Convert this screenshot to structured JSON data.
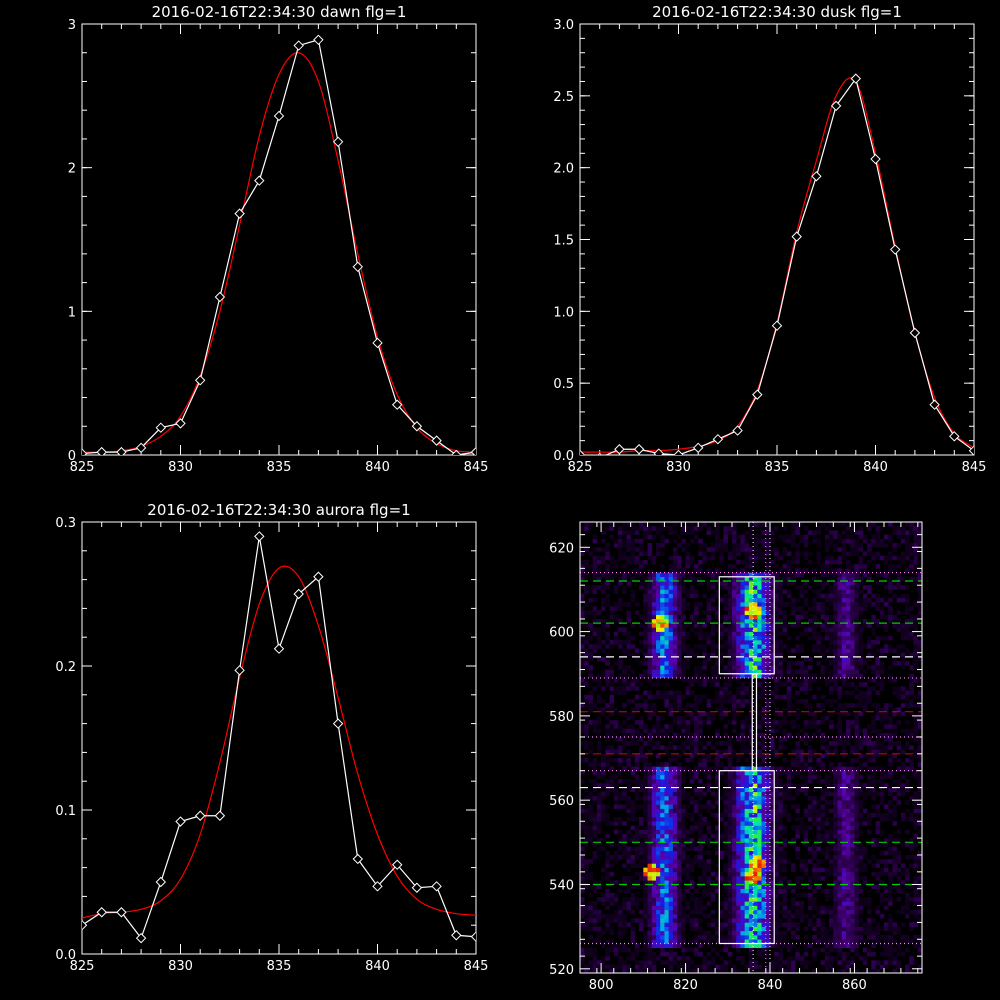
{
  "chart_data": [
    {
      "type": "line",
      "title": "2016-02-16T22:34:30 dawn flg=1",
      "xlim": [
        825,
        845
      ],
      "ylim": [
        0,
        3
      ],
      "xticks": [
        "825",
        "830",
        "835",
        "840",
        "845"
      ],
      "yticks": [
        "0",
        "1",
        "2",
        "3"
      ],
      "series": [
        {
          "color": "#ffffff",
          "marker": "diamond",
          "x": [
            825,
            826,
            827,
            828,
            829,
            830,
            831,
            832,
            833,
            834,
            835,
            836,
            837,
            838,
            839,
            840,
            841,
            842,
            843,
            844,
            845
          ],
          "y": [
            0.01,
            0.02,
            0.02,
            0.05,
            0.19,
            0.22,
            0.52,
            1.1,
            1.68,
            1.91,
            2.36,
            2.85,
            2.89,
            2.18,
            1.31,
            0.78,
            0.35,
            0.2,
            0.1,
            0.0,
            0.02
          ]
        },
        {
          "color": "#ff0000",
          "marker": "none",
          "x": [
            825,
            826,
            827,
            828,
            829,
            830,
            831,
            832,
            833,
            834,
            835,
            836,
            837,
            838,
            839,
            840,
            841,
            842,
            843,
            844,
            845
          ],
          "y": [
            0.02,
            0.02,
            0.03,
            0.06,
            0.13,
            0.27,
            0.55,
            1.0,
            1.6,
            2.22,
            2.65,
            2.8,
            2.6,
            2.05,
            1.4,
            0.82,
            0.42,
            0.19,
            0.08,
            0.03,
            0.02
          ]
        }
      ]
    },
    {
      "type": "line",
      "title": "2016-02-16T22:34:30 dusk flg=1",
      "xlim": [
        825,
        845
      ],
      "ylim": [
        0,
        3
      ],
      "xticks": [
        "825",
        "830",
        "835",
        "840",
        "845"
      ],
      "yticks": [
        "0.0",
        "0.5",
        "1.0",
        "1.5",
        "2.0",
        "2.5",
        "3.0"
      ],
      "series": [
        {
          "color": "#ffffff",
          "marker": "diamond",
          "x": [
            825,
            826,
            827,
            828,
            829,
            830,
            831,
            832,
            833,
            834,
            835,
            836,
            837,
            838,
            839,
            840,
            841,
            842,
            843,
            844,
            845
          ],
          "y": [
            0.0,
            -0.02,
            0.04,
            0.04,
            0.01,
            0.0,
            0.05,
            0.11,
            0.17,
            0.42,
            0.9,
            1.52,
            1.94,
            2.43,
            2.62,
            2.06,
            1.43,
            0.85,
            0.35,
            0.13,
            0.03
          ]
        },
        {
          "color": "#ff0000",
          "marker": "none",
          "x": [
            825,
            826,
            827,
            828,
            829,
            830,
            831,
            832,
            833,
            834,
            835,
            836,
            837,
            838,
            839,
            840,
            841,
            842,
            843,
            844,
            845
          ],
          "y": [
            0.02,
            0.02,
            0.02,
            0.03,
            0.03,
            0.04,
            0.06,
            0.1,
            0.2,
            0.45,
            0.92,
            1.55,
            2.05,
            2.5,
            2.6,
            2.1,
            1.45,
            0.85,
            0.4,
            0.15,
            0.05
          ]
        }
      ]
    },
    {
      "type": "line",
      "title": "2016-02-16T22:34:30 aurora flg=1",
      "xlim": [
        825,
        845
      ],
      "ylim": [
        0,
        0.3
      ],
      "xticks": [
        "825",
        "830",
        "835",
        "840",
        "845"
      ],
      "yticks": [
        "0.0",
        "0.1",
        "0.2",
        "0.3"
      ],
      "series": [
        {
          "color": "#ffffff",
          "marker": "diamond",
          "x": [
            825,
            826,
            827,
            828,
            829,
            830,
            831,
            832,
            833,
            834,
            835,
            836,
            837,
            838,
            839,
            840,
            841,
            842,
            843,
            844,
            845
          ],
          "y": [
            0.02,
            0.029,
            0.029,
            0.011,
            0.05,
            0.092,
            0.096,
            0.096,
            0.197,
            0.29,
            0.212,
            0.25,
            0.262,
            0.16,
            0.066,
            0.047,
            0.062,
            0.046,
            0.047,
            0.013,
            0.012
          ]
        },
        {
          "color": "#ff0000",
          "marker": "none",
          "x": [
            825,
            826,
            827,
            828,
            829,
            830,
            831,
            832,
            833,
            834,
            835,
            836,
            837,
            838,
            839,
            840,
            841,
            842,
            843,
            844,
            845
          ],
          "y": [
            0.025,
            0.028,
            0.029,
            0.031,
            0.037,
            0.052,
            0.083,
            0.133,
            0.192,
            0.243,
            0.268,
            0.262,
            0.228,
            0.178,
            0.125,
            0.083,
            0.054,
            0.038,
            0.031,
            0.028,
            0.027
          ]
        }
      ]
    },
    {
      "type": "heatmap",
      "xlim": [
        795,
        876
      ],
      "ylim": [
        519,
        626
      ],
      "xticks": [
        "800",
        "820",
        "840",
        "860"
      ],
      "yticks": [
        "520",
        "540",
        "560",
        "580",
        "600",
        "620"
      ],
      "columns_x": [
        815,
        836,
        858
      ],
      "column_width": [
        7,
        9,
        6
      ],
      "bands": [
        {
          "y": [
            526,
            567
          ],
          "rel": [
            0.7,
            1.0,
            0.35
          ]
        },
        {
          "y": [
            590,
            613
          ],
          "rel": [
            0.75,
            1.0,
            0.35
          ]
        }
      ],
      "hot_spots": [
        [
          836,
          605
        ],
        [
          837,
          545
        ],
        [
          836,
          542
        ],
        [
          814,
          602
        ],
        [
          812,
          543
        ]
      ],
      "boxes": [
        {
          "x": [
            828,
            841
          ],
          "y": [
            526,
            567
          ]
        },
        {
          "x": [
            828,
            841
          ],
          "y": [
            590,
            613
          ]
        },
        {
          "x": [
            835.8,
            836.8
          ],
          "y": [
            567,
            590
          ]
        }
      ],
      "hlines": [
        {
          "y": 612,
          "color": "#00cc00",
          "style": "dash"
        },
        {
          "y": 602,
          "color": "#00cc00",
          "style": "dash"
        },
        {
          "y": 594,
          "color": "#ffffff",
          "style": "dash"
        },
        {
          "y": 581,
          "color": "#cc0000",
          "style": "dash"
        },
        {
          "y": 571,
          "color": "#cc0000",
          "style": "dash"
        },
        {
          "y": 563,
          "color": "#ffffff",
          "style": "dash"
        },
        {
          "y": 550,
          "color": "#00cc00",
          "style": "dash"
        },
        {
          "y": 540,
          "color": "#00cc00",
          "style": "dash"
        },
        {
          "y": 614,
          "color": "#ff88ff",
          "style": "dot"
        },
        {
          "y": 589,
          "color": "#ff88ff",
          "style": "dot"
        },
        {
          "y": 575,
          "color": "#ff88ff",
          "style": "dot"
        },
        {
          "y": 567,
          "color": "#ff88ff",
          "style": "dot"
        },
        {
          "y": 526,
          "color": "#ff88ff",
          "style": "dot"
        }
      ],
      "vlines": [
        {
          "x": 836,
          "color": "#ffffff",
          "style": "dot"
        },
        {
          "x": 839,
          "color": "#ff88ff",
          "style": "dot"
        },
        {
          "x": 840,
          "color": "#ffffff",
          "style": "dot"
        }
      ]
    }
  ]
}
